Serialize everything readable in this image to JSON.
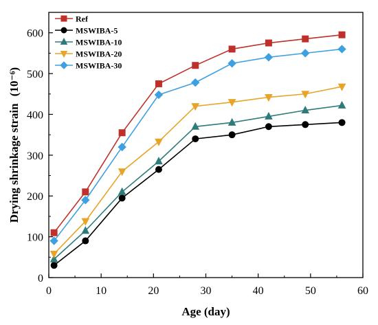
{
  "chart_data": {
    "type": "line",
    "title": "",
    "xlabel": "Age (day)",
    "ylabel": "Drying shrinkage strain",
    "ylabel_unit": "(10⁻⁶)",
    "xlim": [
      0,
      60
    ],
    "ylim": [
      0,
      650
    ],
    "xticks": [
      0,
      10,
      20,
      30,
      40,
      50,
      60
    ],
    "yticks": [
      0,
      100,
      200,
      300,
      400,
      500,
      600
    ],
    "grid": false,
    "legend_position": "top-left",
    "x": [
      1,
      7,
      14,
      21,
      28,
      35,
      42,
      49,
      56
    ],
    "series": [
      {
        "name": "Ref",
        "color": "#c0302a",
        "marker": "square",
        "values": [
          110,
          210,
          355,
          475,
          520,
          560,
          575,
          585,
          595
        ]
      },
      {
        "name": "MSWIBA-5",
        "color": "#000000",
        "marker": "circle",
        "values": [
          30,
          90,
          195,
          265,
          340,
          350,
          370,
          375,
          380
        ]
      },
      {
        "name": "MSWIBA-10",
        "color": "#2e7b7b",
        "marker": "triangle-up",
        "values": [
          45,
          115,
          210,
          285,
          370,
          380,
          395,
          410,
          422
        ]
      },
      {
        "name": "MSWIBA-20",
        "color": "#e8a427",
        "marker": "triangle-down",
        "values": [
          58,
          138,
          260,
          333,
          420,
          430,
          442,
          450,
          468
        ]
      },
      {
        "name": "MSWIBA-30",
        "color": "#3fa0e0",
        "marker": "diamond",
        "values": [
          90,
          190,
          320,
          448,
          478,
          525,
          540,
          550,
          560
        ]
      }
    ]
  }
}
